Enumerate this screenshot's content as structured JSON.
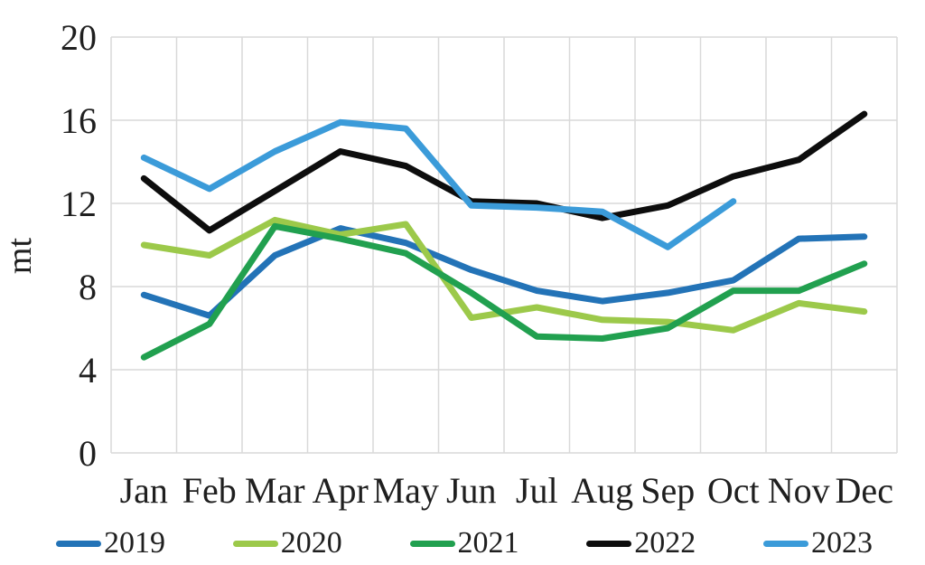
{
  "chart_data": {
    "type": "line",
    "title": "",
    "xlabel": "",
    "ylabel": "mt",
    "ylim": [
      0,
      20
    ],
    "y_ticks": [
      0,
      4,
      8,
      12,
      16,
      20
    ],
    "grid": true,
    "legend_position": "bottom",
    "categories": [
      "Jan",
      "Feb",
      "Mar",
      "Apr",
      "May",
      "Jun",
      "Jul",
      "Aug",
      "Sep",
      "Oct",
      "Nov",
      "Dec"
    ],
    "series": [
      {
        "name": "2019",
        "color": "#2373b7",
        "values": [
          7.6,
          6.6,
          9.5,
          10.8,
          10.1,
          8.8,
          7.8,
          7.3,
          7.7,
          8.3,
          10.3,
          10.4
        ]
      },
      {
        "name": "2020",
        "color": "#9cc94a",
        "values": [
          10.0,
          9.5,
          11.2,
          10.5,
          11.0,
          6.5,
          7.0,
          6.4,
          6.3,
          5.9,
          7.2,
          6.8
        ]
      },
      {
        "name": "2021",
        "color": "#21a04f",
        "values": [
          4.6,
          6.2,
          10.9,
          10.3,
          9.6,
          7.7,
          5.6,
          5.5,
          6.0,
          7.8,
          7.8,
          9.1
        ]
      },
      {
        "name": "2022",
        "color": "#0d0d0d",
        "values": [
          13.2,
          10.7,
          12.6,
          14.5,
          13.8,
          12.1,
          12.0,
          11.3,
          11.9,
          13.3,
          14.1,
          16.3
        ]
      },
      {
        "name": "2023",
        "color": "#3b9bd9",
        "values": [
          14.2,
          12.7,
          14.5,
          15.9,
          15.6,
          11.9,
          11.8,
          11.6,
          9.9,
          12.1,
          null,
          null
        ]
      }
    ]
  },
  "colors": {
    "grid": "#d9d9d9",
    "text": "#1f1f1f",
    "background": "#ffffff"
  }
}
